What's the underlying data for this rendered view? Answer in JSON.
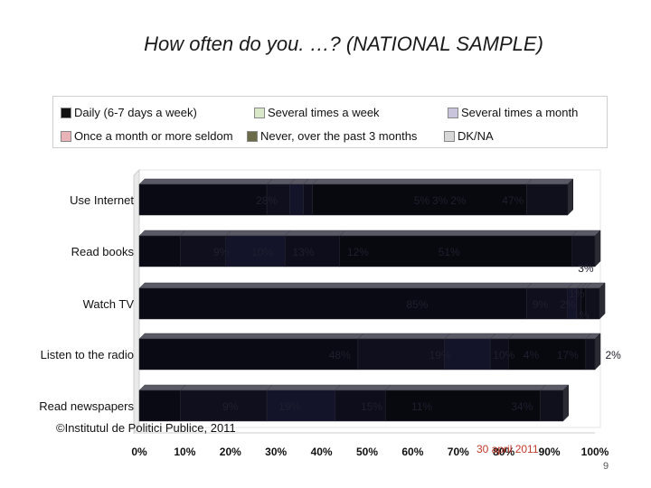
{
  "slide": {
    "title": "How often do you. …? (NATIONAL SAMPLE)",
    "source": "©Institutul de Politici Publice, 2011",
    "date": "30 april 2011",
    "page_number": "9"
  },
  "colors": {
    "daily": "#0a0a14",
    "several_week": "#0f0f1e",
    "several_month": "#13132a",
    "once_month": "#0d0d1c",
    "never": "#08080f",
    "dk_na": "#10101c",
    "background_panel": "#ffffff",
    "text": "#1a1a1a"
  },
  "chart_data": {
    "type": "bar",
    "orientation": "horizontal",
    "stacked": true,
    "percent_stacked": true,
    "categories": [
      "Use Internet",
      "Read books",
      "Watch TV",
      "Listen to the radio",
      "Read newspapers"
    ],
    "series": [
      {
        "name": "Daily (6-7 days a week)",
        "values": [
          28,
          9,
          85,
          48,
          9
        ]
      },
      {
        "name": "Several times a week",
        "values": [
          5,
          10,
          9,
          19,
          19
        ]
      },
      {
        "name": "Several times a month",
        "values": [
          3,
          13,
          2,
          10,
          15
        ]
      },
      {
        "name": "Once a month or more seldom",
        "values": [
          2,
          12,
          1,
          4,
          11
        ]
      },
      {
        "name": "Never, over the past 3 months",
        "values": [
          47,
          51,
          1,
          17,
          34
        ]
      },
      {
        "name": "DK/NA",
        "values": [
          9,
          5,
          3,
          2,
          5
        ]
      }
    ],
    "data_labels": [
      [
        {
          "text": "28%",
          "x": 28,
          "dy": 0
        },
        {
          "text": "5%",
          "x": 62,
          "dy": 0
        },
        {
          "text": "3%",
          "x": 66,
          "dy": 0
        },
        {
          "text": "2%",
          "x": 70,
          "dy": 0
        },
        {
          "text": "47%",
          "x": 82,
          "dy": 0
        }
      ],
      [
        {
          "text": "9%",
          "x": 18,
          "dy": 0
        },
        {
          "text": "10%",
          "x": 27,
          "dy": 0
        },
        {
          "text": "13%",
          "x": 36,
          "dy": 0
        },
        {
          "text": "12%",
          "x": 48,
          "dy": 0
        },
        {
          "text": "51%",
          "x": 68,
          "dy": 0
        }
      ],
      [
        {
          "text": "85%",
          "x": 61,
          "dy": 0
        },
        {
          "text": "9%",
          "x": 88,
          "dy": 0
        },
        {
          "text": "2%",
          "x": 94,
          "dy": 0
        },
        {
          "text": "1%",
          "x": 96,
          "dy": -12
        },
        {
          "text": "1%",
          "x": 97,
          "dy": 12
        },
        {
          "text": "3%",
          "x": 98,
          "dy": -40
        }
      ],
      [
        {
          "text": "48%",
          "x": 44,
          "dy": 0
        },
        {
          "text": "19%",
          "x": 66,
          "dy": 0
        },
        {
          "text": "10%",
          "x": 80,
          "dy": 0
        },
        {
          "text": "4%",
          "x": 86,
          "dy": 0
        },
        {
          "text": "17%",
          "x": 94,
          "dy": 0
        },
        {
          "text": "2%",
          "x": 104,
          "dy": 0
        }
      ],
      [
        {
          "text": "9%",
          "x": 20,
          "dy": 0
        },
        {
          "text": "19%",
          "x": 33,
          "dy": 0
        },
        {
          "text": "15%",
          "x": 51,
          "dy": 0
        },
        {
          "text": "11%",
          "x": 62,
          "dy": 0
        },
        {
          "text": "34%",
          "x": 84,
          "dy": 0
        }
      ]
    ],
    "xlim": [
      0,
      100
    ],
    "x_ticks": [
      "0%",
      "10%",
      "20%",
      "30%",
      "40%",
      "50%",
      "60%",
      "70%",
      "80%",
      "90%",
      "100%"
    ],
    "legend_position": "top"
  }
}
